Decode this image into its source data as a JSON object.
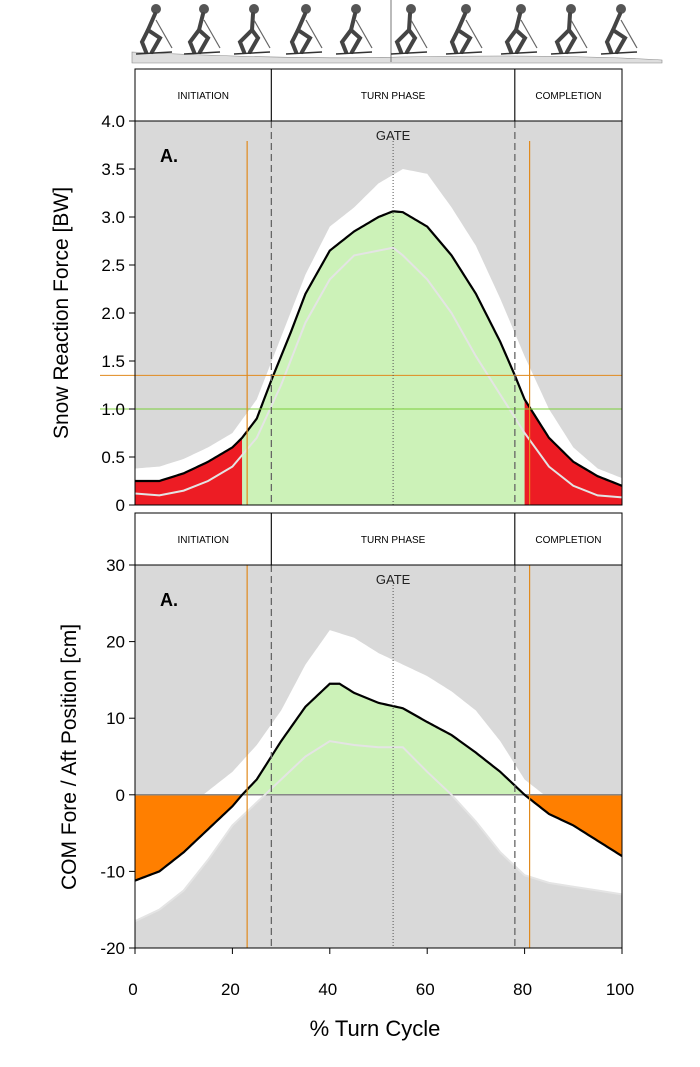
{
  "chart_data": [
    {
      "type": "line",
      "panel_label": "A.",
      "ylabel": "Snow Reaction Force [BW]",
      "xlabel": "",
      "xlim": [
        0,
        100
      ],
      "ylim": [
        0,
        4
      ],
      "yticks": [
        "4.0",
        "3.5",
        "3.0",
        "2.5",
        "2.0",
        "1.5",
        "1.0",
        "0.5",
        "0"
      ],
      "gate_label": "GATE",
      "phases": [
        "INITIATION",
        "TURN PHASE",
        "COMPLETION"
      ],
      "phase_bounds": [
        0,
        28,
        78,
        100
      ],
      "marker_lines_x": [
        22,
        80
      ],
      "threshold_lines_y": [
        {
          "value": 1.35,
          "color": "#e08a1e"
        },
        {
          "value": 1.0,
          "color": "#7ccf3c"
        }
      ],
      "gate_x": 53,
      "series": [
        {
          "role": "mean",
          "x": [
            0,
            5,
            10,
            15,
            20,
            22,
            25,
            28,
            32,
            35,
            40,
            45,
            50,
            53,
            55,
            60,
            65,
            70,
            75,
            78,
            80,
            85,
            90,
            95,
            100
          ],
          "values": [
            0.25,
            0.25,
            0.33,
            0.45,
            0.6,
            0.7,
            0.9,
            1.3,
            1.8,
            2.2,
            2.65,
            2.85,
            3.0,
            3.06,
            3.05,
            2.9,
            2.6,
            2.2,
            1.7,
            1.35,
            1.1,
            0.7,
            0.45,
            0.3,
            0.2
          ]
        },
        {
          "role": "upper",
          "x": [
            0,
            5,
            10,
            15,
            20,
            25,
            30,
            35,
            40,
            45,
            50,
            55,
            60,
            65,
            70,
            75,
            80,
            85,
            90,
            95,
            100
          ],
          "values": [
            0.38,
            0.4,
            0.48,
            0.6,
            0.75,
            1.1,
            1.75,
            2.4,
            2.9,
            3.1,
            3.35,
            3.5,
            3.45,
            3.1,
            2.7,
            2.15,
            1.55,
            1.0,
            0.6,
            0.38,
            0.28
          ]
        },
        {
          "role": "lower",
          "x": [
            0,
            5,
            10,
            15,
            20,
            25,
            30,
            35,
            40,
            45,
            50,
            53,
            55,
            60,
            65,
            70,
            75,
            80,
            85,
            90,
            95,
            100
          ],
          "values": [
            0.12,
            0.1,
            0.15,
            0.25,
            0.4,
            0.7,
            1.25,
            1.9,
            2.35,
            2.6,
            2.65,
            2.68,
            2.6,
            2.35,
            2.0,
            1.55,
            1.15,
            0.75,
            0.4,
            0.2,
            0.1,
            0.08
          ]
        }
      ]
    },
    {
      "type": "line",
      "panel_label": "A.",
      "ylabel": "COM Fore / Aft Position [cm]",
      "xlabel": "% Turn Cycle",
      "xlim": [
        0,
        100
      ],
      "ylim": [
        -20,
        30
      ],
      "xticks": [
        "0",
        "20",
        "40",
        "60",
        "80",
        "100"
      ],
      "yticks": [
        "30",
        "20",
        "10",
        "0",
        "-10",
        "-20"
      ],
      "gate_label": "GATE",
      "phases": [
        "INITIATION",
        "TURN PHASE",
        "COMPLETION"
      ],
      "phase_bounds": [
        0,
        28,
        78,
        100
      ],
      "marker_lines_x": [
        22,
        80
      ],
      "gate_x": 53,
      "series": [
        {
          "role": "mean",
          "x": [
            0,
            5,
            10,
            15,
            20,
            22,
            25,
            28,
            30,
            35,
            40,
            42,
            45,
            50,
            55,
            60,
            65,
            70,
            75,
            80,
            85,
            90,
            95,
            100
          ],
          "values": [
            -11.2,
            -10,
            -7.5,
            -4.5,
            -1.5,
            0,
            2,
            5,
            7,
            11.5,
            14.5,
            14.5,
            13.3,
            12,
            11.3,
            9.5,
            7.8,
            5.5,
            3,
            0,
            -2.5,
            -4,
            -6,
            -8
          ]
        },
        {
          "role": "upper",
          "x": [
            0,
            5,
            10,
            15,
            20,
            25,
            30,
            35,
            40,
            45,
            50,
            55,
            60,
            65,
            70,
            75,
            80,
            85,
            90,
            95,
            100
          ],
          "values": [
            -5,
            -4,
            -2,
            0.5,
            3,
            6.5,
            11,
            17,
            21.5,
            20.5,
            18.5,
            17,
            15.5,
            13.5,
            11,
            7,
            2,
            -0.5,
            -1.5,
            -2.5,
            -3
          ]
        },
        {
          "role": "lower",
          "x": [
            0,
            5,
            10,
            15,
            20,
            25,
            30,
            35,
            40,
            45,
            50,
            55,
            60,
            65,
            70,
            75,
            80,
            85,
            90,
            95,
            100
          ],
          "values": [
            -16.5,
            -15,
            -12.5,
            -8.5,
            -4,
            -1,
            2,
            5,
            7,
            6.5,
            6.2,
            6.2,
            3,
            0,
            -3.5,
            -7.5,
            -10.5,
            -11.5,
            -12,
            -12.5,
            -13
          ]
        }
      ]
    }
  ]
}
